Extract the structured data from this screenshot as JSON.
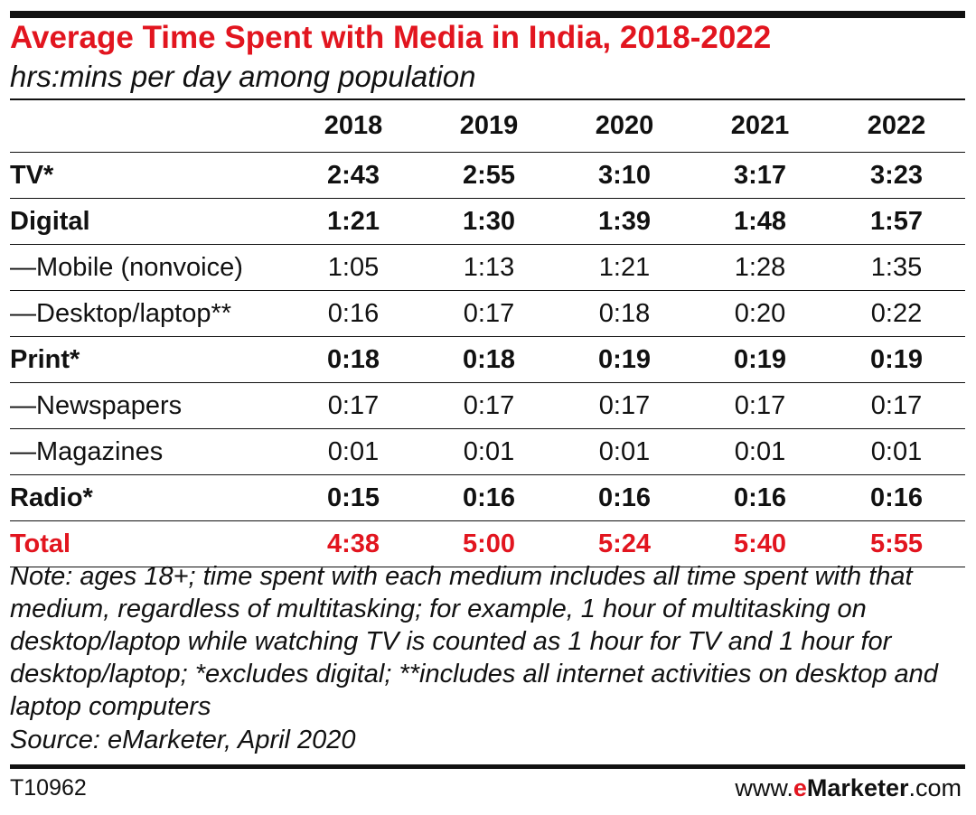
{
  "chart_data": {
    "type": "table",
    "title": "Average Time Spent with Media in India, 2018-2022",
    "subtitle": "hrs:mins per day among population",
    "columns": [
      "2018",
      "2019",
      "2020",
      "2021",
      "2022"
    ],
    "rows": [
      {
        "label": "TV*",
        "values": [
          "2:43",
          "2:55",
          "3:10",
          "3:17",
          "3:23"
        ]
      },
      {
        "label": "Digital",
        "values": [
          "1:21",
          "1:30",
          "1:39",
          "1:48",
          "1:57"
        ]
      },
      {
        "label": "—Mobile (nonvoice)",
        "values": [
          "1:05",
          "1:13",
          "1:21",
          "1:28",
          "1:35"
        ]
      },
      {
        "label": "—Desktop/laptop**",
        "values": [
          "0:16",
          "0:17",
          "0:18",
          "0:20",
          "0:22"
        ]
      },
      {
        "label": "Print*",
        "values": [
          "0:18",
          "0:18",
          "0:19",
          "0:19",
          "0:19"
        ]
      },
      {
        "label": "—Newspapers",
        "values": [
          "0:17",
          "0:17",
          "0:17",
          "0:17",
          "0:17"
        ]
      },
      {
        "label": "—Magazines",
        "values": [
          "0:01",
          "0:01",
          "0:01",
          "0:01",
          "0:01"
        ]
      },
      {
        "label": "Radio*",
        "values": [
          "0:15",
          "0:16",
          "0:16",
          "0:16",
          "0:16"
        ]
      },
      {
        "label": "Total",
        "values": [
          "4:38",
          "5:00",
          "5:24",
          "5:40",
          "5:55"
        ]
      }
    ],
    "note": "Note: ages 18+; time spent with each medium includes all time spent with that medium, regardless of multitasking; for example, 1 hour of multitasking on desktop/laptop while watching TV is counted as 1 hour for TV and 1 hour for desktop/laptop; *excludes digital; **includes all internet activities on desktop and laptop computers",
    "source": "Source: eMarketer, April 2020",
    "code": "T10962"
  },
  "brand": {
    "prefix": "www.",
    "e": "e",
    "name": "Marketer",
    "suffix": ".com"
  },
  "colors": {
    "accent": "#e2151f",
    "text": "#111111",
    "background": "#ffffff"
  }
}
